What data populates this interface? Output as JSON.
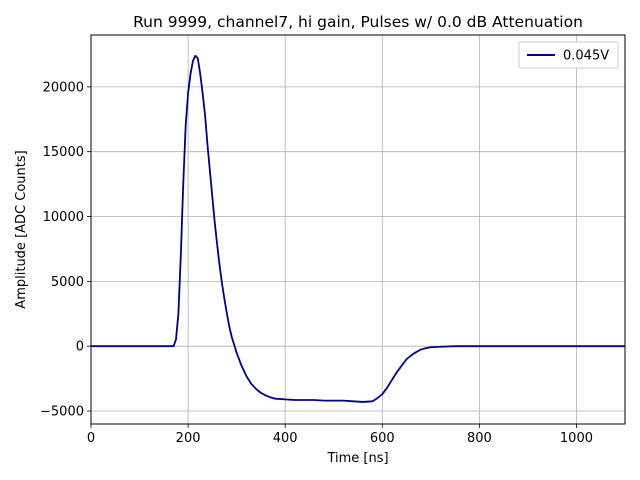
{
  "chart_data": {
    "type": "line",
    "title": "Run 9999, channel7, hi gain, Pulses w/ 0.0 dB Attenuation",
    "xlabel": "Time [ns]",
    "ylabel": "Amplitude [ADC Counts]",
    "xlim": [
      0,
      1100
    ],
    "ylim": [
      -6000,
      24000
    ],
    "xticks": [
      0,
      200,
      400,
      600,
      800,
      1000
    ],
    "xtick_labels": [
      "0",
      "200",
      "400",
      "600",
      "800",
      "1000"
    ],
    "yticks": [
      -5000,
      0,
      5000,
      10000,
      15000,
      20000
    ],
    "ytick_labels": [
      "−5000",
      "0",
      "5000",
      "10000",
      "15000",
      "20000"
    ],
    "grid": true,
    "legend_position": "top-right",
    "series": [
      {
        "name": "0.045V",
        "color": "#000080",
        "x": [
          0,
          50,
          100,
          150,
          170,
          175,
          180,
          185,
          190,
          195,
          200,
          205,
          210,
          215,
          220,
          225,
          230,
          235,
          240,
          245,
          250,
          255,
          260,
          265,
          270,
          275,
          280,
          285,
          290,
          300,
          310,
          320,
          330,
          340,
          350,
          360,
          370,
          380,
          400,
          420,
          440,
          460,
          480,
          500,
          520,
          540,
          560,
          580,
          590,
          600,
          610,
          620,
          630,
          640,
          650,
          660,
          670,
          680,
          690,
          700,
          720,
          750,
          800,
          850,
          900,
          950,
          1000,
          1050,
          1100
        ],
        "y": [
          0,
          0,
          0,
          0,
          0,
          500,
          2500,
          7000,
          12500,
          17000,
          19500,
          21000,
          22000,
          22400,
          22200,
          21000,
          19500,
          17800,
          15500,
          13500,
          11500,
          9500,
          7800,
          6200,
          4800,
          3600,
          2500,
          1500,
          700,
          -500,
          -1500,
          -2300,
          -2900,
          -3300,
          -3600,
          -3800,
          -3950,
          -4050,
          -4100,
          -4150,
          -4150,
          -4150,
          -4200,
          -4200,
          -4200,
          -4250,
          -4300,
          -4250,
          -4000,
          -3700,
          -3200,
          -2600,
          -2000,
          -1500,
          -1000,
          -700,
          -450,
          -250,
          -150,
          -80,
          -40,
          0,
          0,
          0,
          0,
          0,
          0,
          0,
          0
        ]
      }
    ]
  }
}
